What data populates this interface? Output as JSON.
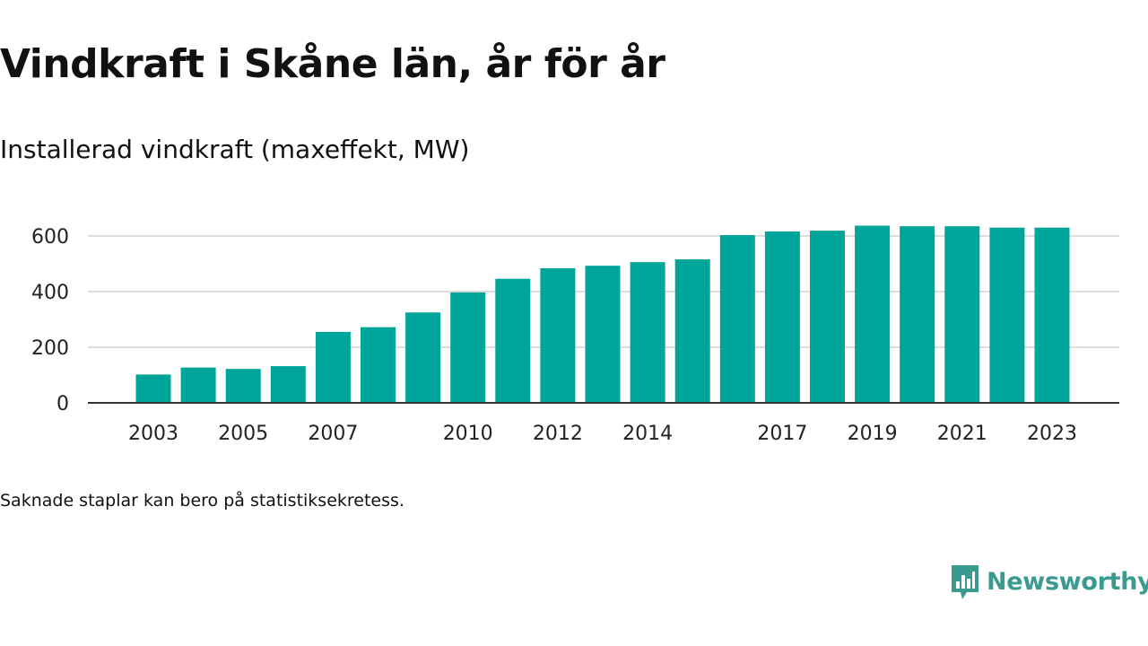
{
  "header": {
    "title": "Vindkraft i Skåne län, år för år",
    "subtitle": "Installerad vindkraft (maxeffekt, MW)"
  },
  "footer": {
    "note": "Saknade staplar kan bero på statistiksekretess.",
    "brand": "Newsworthy"
  },
  "colors": {
    "bar": "#00a59a",
    "brand": "#3a9a8f",
    "grid": "#dddddd",
    "axis": "#333333"
  },
  "icons": {
    "brand_logo": "chat-bubble-bar-chart-icon"
  },
  "chart_data": {
    "type": "bar",
    "title": "Vindkraft i Skåne län, år för år",
    "subtitle": "Installerad vindkraft (maxeffekt, MW)",
    "xlabel": "",
    "ylabel": "",
    "categories": [
      2003,
      2004,
      2005,
      2006,
      2007,
      2008,
      2009,
      2010,
      2011,
      2012,
      2013,
      2014,
      2015,
      2016,
      2017,
      2018,
      2019,
      2020,
      2021,
      2022,
      2023
    ],
    "values": [
      102,
      127,
      122,
      132,
      255,
      272,
      325,
      397,
      446,
      484,
      493,
      506,
      516,
      603,
      616,
      619,
      637,
      635,
      635,
      630,
      630
    ],
    "x_tick_labels": [
      "2003",
      "2005",
      "2007",
      "2010",
      "2012",
      "2014",
      "2017",
      "2019",
      "2021",
      "2023"
    ],
    "y_ticks": [
      0,
      200,
      400,
      600
    ],
    "y_tick_labels": [
      "0",
      "200",
      "400",
      "600"
    ],
    "ylim": [
      0,
      640
    ],
    "grid": true,
    "legend": "none"
  }
}
